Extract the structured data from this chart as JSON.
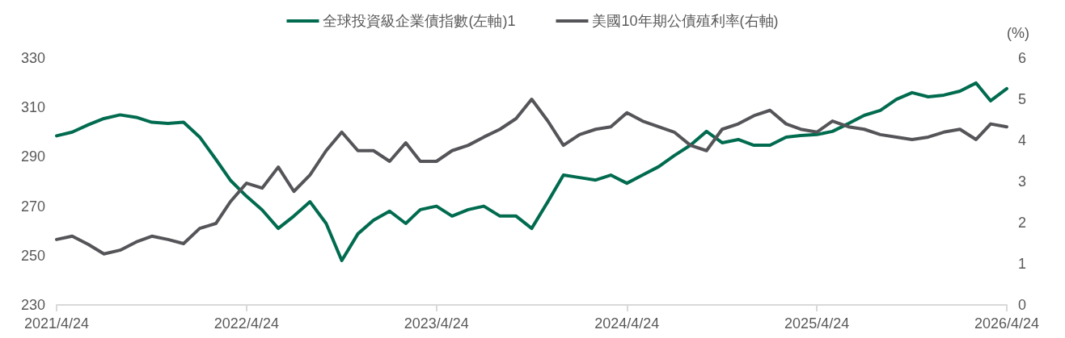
{
  "chart_data": {
    "type": "line",
    "x": [
      "2021-04-24",
      "2021-05-24",
      "2021-06-24",
      "2021-07-24",
      "2021-08-24",
      "2021-09-24",
      "2021-10-24",
      "2021-11-24",
      "2021-12-24",
      "2022-01-24",
      "2022-02-24",
      "2022-03-24",
      "2022-04-24",
      "2022-05-24",
      "2022-06-24",
      "2022-07-24",
      "2022-08-24",
      "2022-09-24",
      "2022-10-24",
      "2022-11-24",
      "2022-12-24",
      "2023-01-24",
      "2023-02-24",
      "2023-03-24",
      "2023-04-24",
      "2023-05-24",
      "2023-06-24",
      "2023-07-24",
      "2023-08-24",
      "2023-09-24",
      "2023-10-24",
      "2023-11-24",
      "2023-12-24",
      "2024-01-24",
      "2024-02-24",
      "2024-03-24",
      "2024-04-24",
      "2024-05-24",
      "2024-06-24",
      "2024-07-24",
      "2024-08-24",
      "2024-09-24",
      "2024-10-24",
      "2024-11-24",
      "2024-12-24",
      "2025-01-24",
      "2025-02-24",
      "2025-03-24",
      "2025-04-24",
      "2025-05-24",
      "2025-06-24",
      "2025-07-24",
      "2025-08-24",
      "2025-09-24",
      "2025-10-24",
      "2025-11-24",
      "2025-12-24",
      "2026-01-24",
      "2026-02-24",
      "2026-03-24",
      "2026-04-24"
    ],
    "series": [
      {
        "name": "全球投資級企業債指數(左軸)1",
        "color": "#006b4f",
        "values": [
          298.5,
          300,
          303,
          305.5,
          307,
          306,
          304,
          303.5,
          304,
          298,
          289,
          280.5,
          274,
          268.5,
          261,
          266,
          271.8,
          263,
          248,
          258.8,
          264.3,
          268,
          263,
          268.6,
          270,
          266,
          268.6,
          270,
          266,
          266,
          261,
          271.8,
          282.6,
          281.6,
          280.6,
          282.6,
          279.3,
          282.6,
          286,
          290.5,
          294.7,
          300.3,
          295.7,
          297,
          294.7,
          294.7,
          298,
          298.6,
          299,
          300.3,
          303.5,
          306.8,
          308.8,
          313.3,
          316,
          314.3,
          315,
          316.6,
          319.9,
          312.7,
          317.6
        ]
      },
      {
        "name": "美國10年期公債殖利率(右軸)",
        "color": "#555559",
        "axis": "y2",
        "values": [
          1.59,
          1.67,
          1.47,
          1.24,
          1.33,
          1.53,
          1.67,
          1.59,
          1.49,
          1.86,
          1.98,
          2.51,
          2.96,
          2.84,
          3.35,
          2.76,
          3.16,
          3.75,
          4.2,
          3.75,
          3.75,
          3.49,
          3.94,
          3.49,
          3.49,
          3.75,
          3.88,
          4.08,
          4.27,
          4.53,
          5.0,
          4.47,
          3.88,
          4.14,
          4.27,
          4.33,
          4.67,
          4.47,
          4.33,
          4.2,
          3.88,
          3.75,
          4.27,
          4.4,
          4.6,
          4.73,
          4.4,
          4.27,
          4.2,
          4.47,
          4.33,
          4.27,
          4.14,
          4.08,
          4.02,
          4.08,
          4.2,
          4.27,
          4.02,
          4.4,
          4.33
        ]
      }
    ],
    "xlim": [
      "2021-04-24",
      "2026-04-24"
    ],
    "xticks": [
      {
        "value": "2021-04-24",
        "label": "2021/4/24"
      },
      {
        "value": "2022-04-24",
        "label": "2022/4/24"
      },
      {
        "value": "2023-04-24",
        "label": "2023/4/24"
      },
      {
        "value": "2024-04-24",
        "label": "2024/4/24"
      },
      {
        "value": "2025-04-24",
        "label": "2025/4/24"
      },
      {
        "value": "2026-04-24",
        "label": "2026/4/24"
      }
    ],
    "ylim": [
      230,
      330
    ],
    "yticks": [
      230,
      250,
      270,
      290,
      310,
      330
    ],
    "y2lim": [
      0,
      6
    ],
    "y2ticks": [
      0,
      1,
      2,
      3,
      4,
      5,
      6
    ],
    "y2label": "(%)",
    "legend": "top",
    "grid": false,
    "marker": "none",
    "line_style": "solid"
  }
}
